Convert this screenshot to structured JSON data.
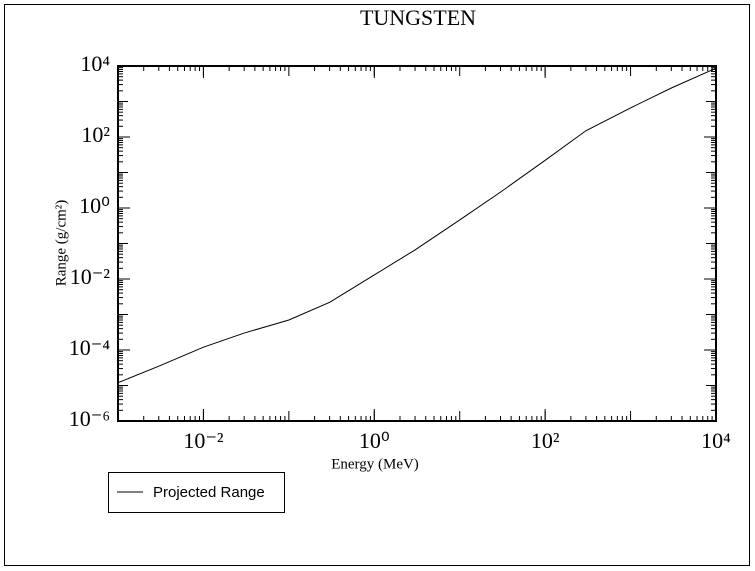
{
  "chart_data": {
    "type": "line",
    "title": "TUNGSTEN",
    "x_label": "Energy (MeV)",
    "y_label": "Range (g/cm²)",
    "x": [
      0.001,
      0.003,
      0.01,
      0.03,
      0.1,
      0.3,
      1,
      3,
      10,
      30,
      100,
      300,
      1000,
      3000,
      10000
    ],
    "series": [
      {
        "name": "Projected Range",
        "color": "#000000",
        "values": [
          1.2e-05,
          3.5e-05,
          0.00012,
          0.0003,
          0.0007,
          0.0022,
          0.013,
          0.066,
          0.46,
          2.8,
          22,
          150,
          660,
          2400,
          8700
        ]
      }
    ],
    "xscale": "log",
    "yscale": "log",
    "xlim": [
      0.001,
      10000
    ],
    "ylim": [
      1e-06,
      10000
    ],
    "xticks": [
      {
        "value": 0.01,
        "label": "10⁻²"
      },
      {
        "value": 1,
        "label": "10⁰"
      },
      {
        "value": 100,
        "label": "10²"
      },
      {
        "value": 10000,
        "label": "10⁴"
      }
    ],
    "yticks": [
      {
        "value": 1e-06,
        "label": "10⁻⁶"
      },
      {
        "value": 0.0001,
        "label": "10⁻⁴"
      },
      {
        "value": 0.01,
        "label": "10⁻²"
      },
      {
        "value": 1,
        "label": "10⁰"
      },
      {
        "value": 100,
        "label": "10²"
      },
      {
        "value": 10000,
        "label": "10⁴"
      }
    ],
    "legend": "bottom-left"
  }
}
